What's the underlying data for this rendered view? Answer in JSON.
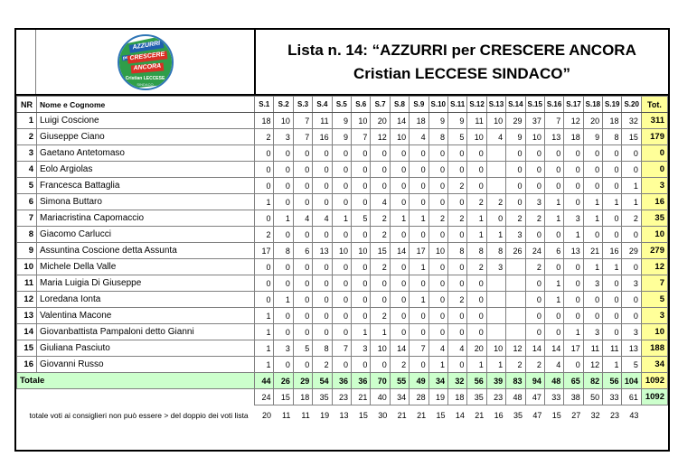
{
  "header": {
    "title_line1": "Lista n. 14: “AZZURRI per CRESCERE ANCORA",
    "title_line2": "Cristian LECCESE SINDACO”"
  },
  "logo": {
    "band_azzurri": "AZZURRI",
    "band_per": "per",
    "band_crescere": "CRESCERE",
    "band_ancora": "ANCORA",
    "candidate": "Cristian LECCESE",
    "role": "SINDACO"
  },
  "table": {
    "col_nr": "NR",
    "col_name": "Nome e Cognome",
    "col_sections": [
      "S.1",
      "S.2",
      "S.3",
      "S.4",
      "S.5",
      "S.6",
      "S.7",
      "S.8",
      "S.9",
      "S.10",
      "S.11",
      "S.12",
      "S.13",
      "S.14",
      "S.15",
      "S.16",
      "S.17",
      "S.18",
      "S.19",
      "S.20"
    ],
    "col_total": "Tot.",
    "rows": [
      {
        "nr": "1",
        "name": "Luigi Coscione",
        "votes": [
          "18",
          "10",
          "7",
          "11",
          "9",
          "10",
          "20",
          "14",
          "18",
          "9",
          "9",
          "11",
          "10",
          "29",
          "37",
          "7",
          "12",
          "20",
          "18",
          "32"
        ],
        "total": "311"
      },
      {
        "nr": "2",
        "name": "Giuseppe Ciano",
        "votes": [
          "2",
          "3",
          "7",
          "16",
          "9",
          "7",
          "12",
          "10",
          "4",
          "8",
          "5",
          "10",
          "4",
          "9",
          "10",
          "13",
          "18",
          "9",
          "8",
          "15"
        ],
        "total": "179"
      },
      {
        "nr": "3",
        "name": "Gaetano Antetomaso",
        "votes": [
          "0",
          "0",
          "0",
          "0",
          "0",
          "0",
          "0",
          "0",
          "0",
          "0",
          "0",
          "0",
          "",
          "0",
          "0",
          "0",
          "0",
          "0",
          "0",
          "0"
        ],
        "total": "0"
      },
      {
        "nr": "4",
        "name": "Eolo Argiolas",
        "votes": [
          "0",
          "0",
          "0",
          "0",
          "0",
          "0",
          "0",
          "0",
          "0",
          "0",
          "0",
          "0",
          "",
          "0",
          "0",
          "0",
          "0",
          "0",
          "0",
          "0"
        ],
        "total": "0"
      },
      {
        "nr": "5",
        "name": "Francesca Battaglia",
        "votes": [
          "0",
          "0",
          "0",
          "0",
          "0",
          "0",
          "0",
          "0",
          "0",
          "0",
          "2",
          "0",
          "",
          "0",
          "0",
          "0",
          "0",
          "0",
          "0",
          "1"
        ],
        "total": "3"
      },
      {
        "nr": "6",
        "name": "Simona Buttaro",
        "votes": [
          "1",
          "0",
          "0",
          "0",
          "0",
          "0",
          "4",
          "0",
          "0",
          "0",
          "0",
          "2",
          "2",
          "0",
          "3",
          "1",
          "0",
          "1",
          "1",
          "1"
        ],
        "total": "16"
      },
      {
        "nr": "7",
        "name": "Mariacristina Capomaccio",
        "votes": [
          "0",
          "1",
          "4",
          "4",
          "1",
          "5",
          "2",
          "1",
          "1",
          "2",
          "2",
          "1",
          "0",
          "2",
          "2",
          "1",
          "3",
          "1",
          "0",
          "2"
        ],
        "total": "35"
      },
      {
        "nr": "8",
        "name": "Giacomo Carlucci",
        "votes": [
          "2",
          "0",
          "0",
          "0",
          "0",
          "0",
          "2",
          "0",
          "0",
          "0",
          "0",
          "1",
          "1",
          "3",
          "0",
          "0",
          "1",
          "0",
          "0",
          "0"
        ],
        "total": "10"
      },
      {
        "nr": "9",
        "name": "Assuntina Coscione detta Assunta",
        "votes": [
          "17",
          "8",
          "6",
          "13",
          "10",
          "10",
          "15",
          "14",
          "17",
          "10",
          "8",
          "8",
          "8",
          "26",
          "24",
          "6",
          "13",
          "21",
          "16",
          "29"
        ],
        "total": "279"
      },
      {
        "nr": "10",
        "name": "Michele Della Valle",
        "votes": [
          "0",
          "0",
          "0",
          "0",
          "0",
          "0",
          "2",
          "0",
          "1",
          "0",
          "0",
          "2",
          "3",
          "",
          "2",
          "0",
          "0",
          "1",
          "1",
          "0"
        ],
        "total": "12"
      },
      {
        "nr": "11",
        "name": "Maria Luigia Di Giuseppe",
        "votes": [
          "0",
          "0",
          "0",
          "0",
          "0",
          "0",
          "0",
          "0",
          "0",
          "0",
          "0",
          "0",
          "",
          "",
          "0",
          "1",
          "0",
          "3",
          "0",
          "3"
        ],
        "total": "7"
      },
      {
        "nr": "12",
        "name": "Loredana Ionta",
        "votes": [
          "0",
          "1",
          "0",
          "0",
          "0",
          "0",
          "0",
          "0",
          "1",
          "0",
          "2",
          "0",
          "",
          "",
          "0",
          "1",
          "0",
          "0",
          "0",
          "0"
        ],
        "total": "5"
      },
      {
        "nr": "13",
        "name": "Valentina Macone",
        "votes": [
          "1",
          "0",
          "0",
          "0",
          "0",
          "0",
          "2",
          "0",
          "0",
          "0",
          "0",
          "0",
          "",
          "",
          "0",
          "0",
          "0",
          "0",
          "0",
          "0"
        ],
        "total": "3"
      },
      {
        "nr": "14",
        "name": "Giovanbattista Pampaloni detto Gianni",
        "votes": [
          "1",
          "0",
          "0",
          "0",
          "0",
          "1",
          "1",
          "0",
          "0",
          "0",
          "0",
          "0",
          "",
          "",
          "0",
          "0",
          "1",
          "3",
          "0",
          "3"
        ],
        "total": "10"
      },
      {
        "nr": "15",
        "name": "Giuliana Pasciuto",
        "votes": [
          "1",
          "3",
          "5",
          "8",
          "7",
          "3",
          "10",
          "14",
          "7",
          "4",
          "4",
          "20",
          "10",
          "12",
          "14",
          "14",
          "17",
          "11",
          "11",
          "13"
        ],
        "total": "188"
      },
      {
        "nr": "16",
        "name": "Giovanni Russo",
        "votes": [
          "1",
          "0",
          "0",
          "2",
          "0",
          "0",
          "0",
          "2",
          "0",
          "1",
          "0",
          "1",
          "1",
          "2",
          "2",
          "4",
          "0",
          "12",
          "1",
          "5"
        ],
        "total": "34"
      }
    ],
    "totale": {
      "label": "Totale",
      "votes": [
        "44",
        "26",
        "29",
        "54",
        "36",
        "36",
        "70",
        "55",
        "49",
        "34",
        "32",
        "56",
        "39",
        "83",
        "94",
        "48",
        "65",
        "82",
        "56",
        "104"
      ],
      "total": "1092"
    },
    "check": {
      "votes": [
        "24",
        "15",
        "18",
        "35",
        "23",
        "21",
        "40",
        "34",
        "28",
        "19",
        "18",
        "35",
        "23",
        "48",
        "47",
        "33",
        "38",
        "50",
        "33",
        "61"
      ],
      "total": "1092"
    },
    "note": {
      "label": "totale voti ai consiglieri non può essere > del doppio dei voti lista",
      "votes": [
        "20",
        "11",
        "11",
        "19",
        "13",
        "15",
        "30",
        "21",
        "21",
        "15",
        "14",
        "21",
        "16",
        "35",
        "47",
        "15",
        "27",
        "32",
        "23",
        "43"
      ]
    }
  },
  "colors": {
    "total_column_bg": "#FFFF99",
    "totale_row_bg": "#CCFFCC",
    "grid_border": "#808080"
  }
}
